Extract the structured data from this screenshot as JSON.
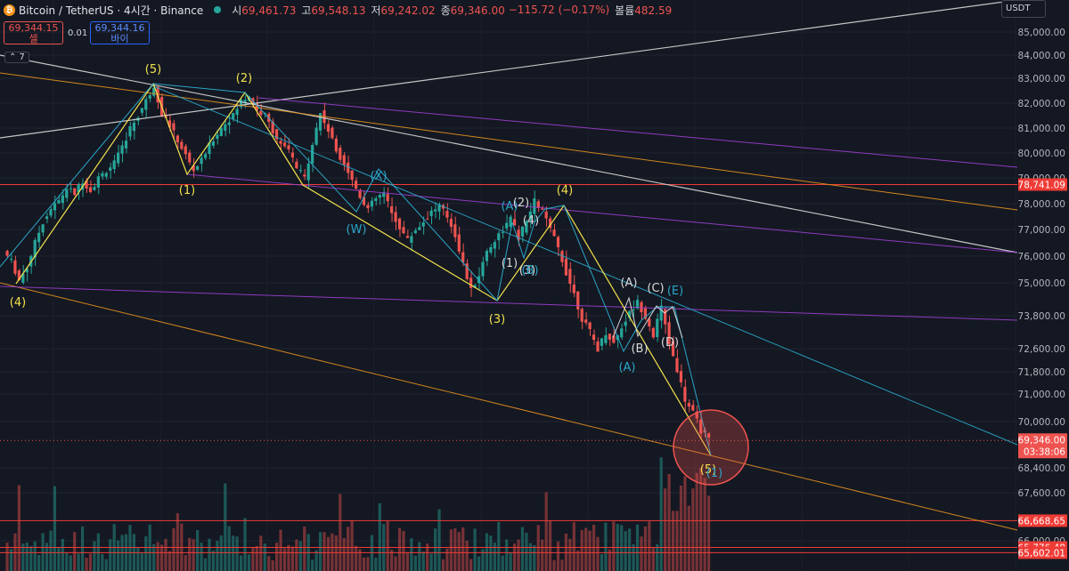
{
  "header": {
    "coin_glyph": "₿",
    "symbol": "Bitcoin / TetherUS · 4시간 · Binance",
    "open_label": "시",
    "open": "69,461.73",
    "high_label": "고",
    "high": "69,548.13",
    "low_label": "저",
    "low": "69,242.02",
    "close_label": "종",
    "close": "69,346.00",
    "change": "−115.72 (−0.17%)",
    "volume_label": "볼륨",
    "volume": "482.59"
  },
  "trade": {
    "sell_price": "69,344.15",
    "sell_label": "셀",
    "spread": "0.01",
    "buy_price": "69,344.16",
    "buy_label": "바이"
  },
  "indicator_toggle": "⌃ 7",
  "currency": "USDT",
  "colors": {
    "background": "#141822",
    "up": "#26a69a",
    "down": "#ef5350",
    "yellow": "#f2e14c",
    "cyan": "#2aa6c9",
    "purple": "#9c3fd0",
    "orange": "#e8921f",
    "white": "#d8d8d8"
  },
  "chart_data": {
    "type": "candlestick",
    "y_axis_ticks": [
      85000,
      84000,
      83000,
      82000,
      81000,
      80000,
      79000,
      78000,
      77000,
      76000,
      75000,
      73800,
      72600,
      71800,
      71000,
      70000,
      68400,
      67600,
      66000
    ],
    "y_axis_tick_labels": [
      "85,000.00",
      "84,000.00",
      "83,000.00",
      "82,000.00",
      "81,000.00",
      "80,000.00",
      "79,000.00",
      "78,000.00",
      "77,000.00",
      "76,000.00",
      "75,000.00",
      "73,800.00",
      "72,600.00",
      "71,800.00",
      "71,000.00",
      "70,000.00",
      "68,400.00",
      "67,600.00",
      "66,000.00"
    ],
    "current_price": {
      "value": 69346,
      "label": "69,346.00",
      "countdown": "03:38:06"
    },
    "horizontal_levels": [
      {
        "value": 78741.09,
        "label": "78,741.09"
      },
      {
        "value": 66668.65,
        "label": "66,668.65"
      },
      {
        "value": 65776.48,
        "label": "65,776.48"
      },
      {
        "value": 65602.01,
        "label": "65,602.01"
      }
    ],
    "close_path": [
      76200,
      75800,
      75100,
      75600,
      76500,
      77300,
      77800,
      78100,
      78600,
      78400,
      78900,
      78500,
      79000,
      79300,
      79600,
      80200,
      81000,
      81500,
      82100,
      82700,
      81600,
      81100,
      80500,
      79900,
      79300,
      79700,
      80300,
      80800,
      81200,
      81500,
      82100,
      82300,
      81700,
      81500,
      80900,
      80300,
      80100,
      79400,
      79000,
      80400,
      81600,
      80900,
      80100,
      79600,
      78900,
      78300,
      77800,
      78200,
      78400,
      77600,
      77100,
      76600,
      77000,
      77300,
      77700,
      77900,
      77500,
      76800,
      75700,
      74700,
      75300,
      76200,
      76600,
      77000,
      77400,
      76700,
      77300,
      78100,
      77700,
      77000,
      76300,
      75400,
      74600,
      73700,
      73200,
      72600,
      73200,
      72800,
      73400,
      73900,
      74300,
      73800,
      73100,
      74100,
      72800,
      71900,
      70800,
      70300,
      69700,
      69346
    ],
    "wave_labels": [
      {
        "text": "(4)",
        "color": "yellow"
      },
      {
        "text": "(5)",
        "color": "yellow"
      },
      {
        "text": "(1)",
        "color": "yellow"
      },
      {
        "text": "(2)",
        "color": "yellow"
      },
      {
        "text": "(X)",
        "color": "cyan"
      },
      {
        "text": "(W)",
        "color": "cyan"
      },
      {
        "text": "(A)",
        "color": "cyan"
      },
      {
        "text": "(2)",
        "color": "white"
      },
      {
        "text": "(4)",
        "color": "white"
      },
      {
        "text": "(4)",
        "color": "yellow"
      },
      {
        "text": "(1)",
        "color": "white"
      },
      {
        "text": "(3)",
        "color": "white"
      },
      {
        "text": "(B)",
        "color": "cyan"
      },
      {
        "text": "(3)",
        "color": "yellow"
      },
      {
        "text": "(A)",
        "color": "white"
      },
      {
        "text": "(C)",
        "color": "white"
      },
      {
        "text": "(E)",
        "color": "cyan"
      },
      {
        "text": "(B)",
        "color": "white"
      },
      {
        "text": "(D)",
        "color": "white"
      },
      {
        "text": "(A)",
        "color": "cyan"
      },
      {
        "text": "(5)",
        "color": "yellow"
      },
      {
        "text": "(1)",
        "color": "cyan"
      }
    ]
  }
}
